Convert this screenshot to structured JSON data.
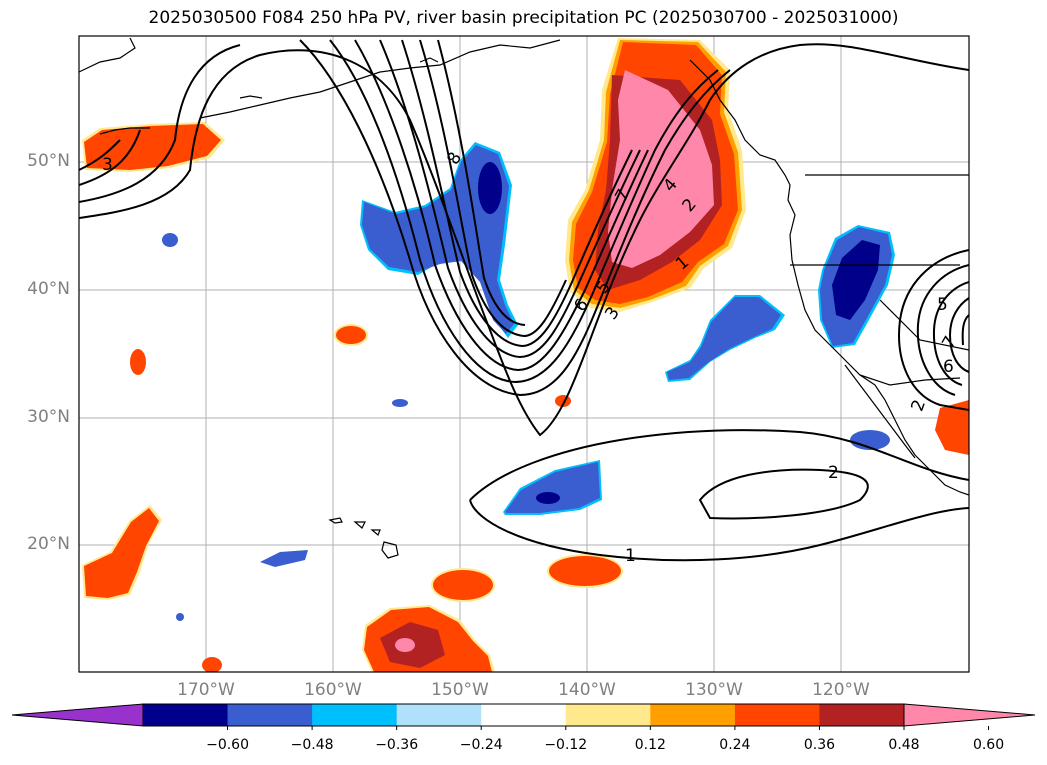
{
  "title": "2025030500 F084 250 hPa PV, river basin precipitation PC (2025030700 - 2025031000)",
  "lat_labels": [
    "50°N",
    "40°N",
    "30°N",
    "20°N"
  ],
  "lon_labels": [
    "170°W",
    "160°W",
    "150°W",
    "140°W",
    "130°W",
    "120°W"
  ],
  "contour_labels": [
    "3",
    "8",
    "7",
    "4",
    "2",
    "1",
    "5",
    "3",
    "6",
    "5",
    "7",
    "6",
    "2",
    "2",
    "1"
  ],
  "colorbar": {
    "ticks": [
      "−0.60",
      "−0.48",
      "−0.36",
      "−0.24",
      "−0.12",
      "0.12",
      "0.24",
      "0.36",
      "0.48",
      "0.60"
    ],
    "colors": [
      "#9932cc",
      "#00008b",
      "#3a5ecf",
      "#00bfff",
      "#b0e0fa",
      "#ffffff",
      "#ffe98c",
      "#ffa000",
      "#ff4500",
      "#b22222",
      "#ff88aa"
    ]
  },
  "palette": {
    "neg_dark": "#00008b",
    "neg_mid": "#3a5ecf",
    "neg_light": "#00bfff",
    "pos_yellow": "#ffe98c",
    "pos_orange": "#ffa000",
    "pos_red": "#ff4500",
    "pos_darkred": "#b22222",
    "pos_pink": "#ff88aa"
  }
}
